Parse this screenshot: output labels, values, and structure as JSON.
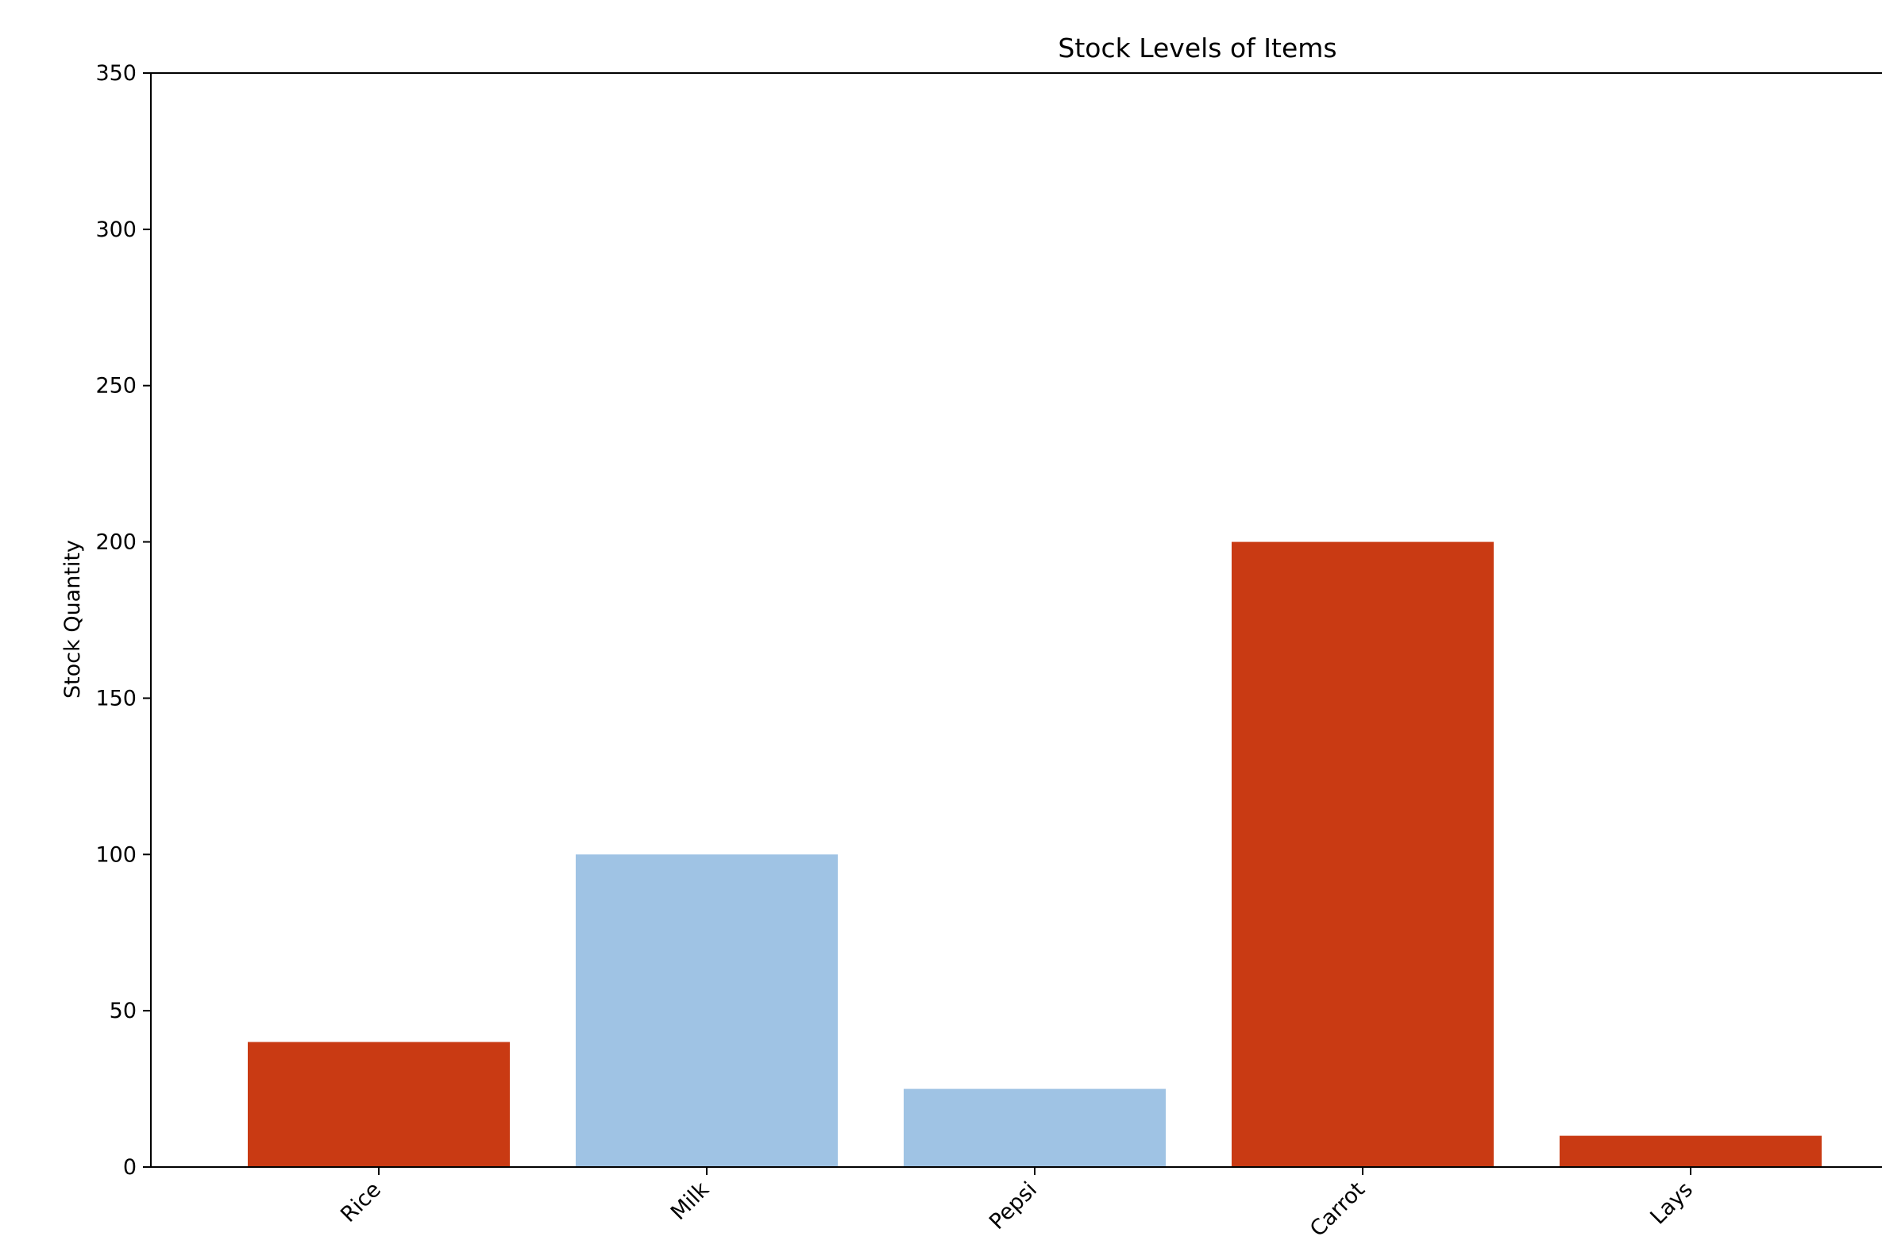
{
  "chart_data": {
    "type": "bar",
    "title": "Stock Levels of Items",
    "xlabel": "",
    "ylabel": "Stock Quantity",
    "categories": [
      "Rice",
      "Milk",
      "Pepsi",
      "Carrot",
      "Lays"
    ],
    "values": [
      40,
      100,
      25,
      200,
      10
    ],
    "bar_colors": [
      "#c93a13",
      "#9fc3e4",
      "#9fc3e4",
      "#c93a13",
      "#c93a13"
    ],
    "ylim": [
      0,
      350
    ],
    "yticks": [
      "0",
      "50",
      "100",
      "150",
      "200",
      "250",
      "300",
      "350"
    ],
    "grid": false,
    "legend": "none"
  }
}
